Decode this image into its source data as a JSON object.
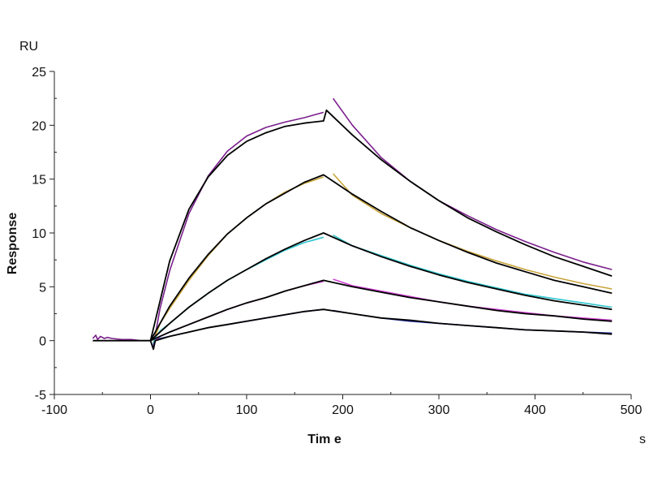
{
  "chart_data": {
    "type": "line",
    "title": "",
    "xlabel": "Tim e",
    "xunit": "s",
    "ylabel": "Response",
    "yunit": "RU",
    "xlim": [
      -100,
      500
    ],
    "ylim": [
      -5,
      25
    ],
    "xticks": [
      -100,
      0,
      100,
      200,
      300,
      400,
      500
    ],
    "yticks": [
      -5,
      0,
      5,
      10,
      15,
      20,
      25
    ],
    "grid": false,
    "legend": "none",
    "series": [
      {
        "name": "data-1",
        "color": "#7a1e8c",
        "kind": "data",
        "segments": [
          [
            [
              -60,
              0.2
            ],
            [
              -57,
              0.5
            ],
            [
              -55,
              0.1
            ],
            [
              -52,
              0.4
            ],
            [
              -48,
              0.2
            ],
            [
              -45,
              0.3
            ],
            [
              -40,
              0.2
            ],
            [
              -30,
              0.1
            ],
            [
              -20,
              0.1
            ],
            [
              -10,
              0.0
            ],
            [
              0,
              0.0
            ]
          ],
          [
            [
              3,
              -0.6
            ],
            [
              5,
              0.5
            ],
            [
              10,
              3.0
            ],
            [
              20,
              6.5
            ],
            [
              40,
              11.8
            ],
            [
              60,
              15.3
            ],
            [
              80,
              17.6
            ],
            [
              100,
              19.0
            ],
            [
              120,
              19.8
            ],
            [
              140,
              20.3
            ],
            [
              160,
              20.7
            ],
            [
              180,
              21.2
            ]
          ],
          [
            [
              190,
              22.5
            ],
            [
              210,
              20.0
            ],
            [
              240,
              17.0
            ],
            [
              270,
              14.8
            ],
            [
              300,
              13.0
            ],
            [
              330,
              11.6
            ],
            [
              360,
              10.3
            ],
            [
              390,
              9.2
            ],
            [
              420,
              8.2
            ],
            [
              450,
              7.3
            ],
            [
              480,
              6.6
            ]
          ]
        ]
      },
      {
        "name": "data-2",
        "color": "#c9a43a",
        "kind": "data",
        "segments": [
          [
            [
              3,
              -0.2
            ],
            [
              5,
              0.4
            ],
            [
              10,
              1.6
            ],
            [
              20,
              3.0
            ],
            [
              40,
              5.6
            ],
            [
              60,
              7.9
            ],
            [
              80,
              9.9
            ],
            [
              100,
              11.4
            ],
            [
              120,
              12.7
            ],
            [
              140,
              13.8
            ],
            [
              160,
              14.6
            ],
            [
              180,
              15.2
            ]
          ],
          [
            [
              190,
              15.5
            ],
            [
              210,
              13.5
            ],
            [
              240,
              11.8
            ],
            [
              270,
              10.5
            ],
            [
              300,
              9.3
            ],
            [
              330,
              8.3
            ],
            [
              360,
              7.4
            ],
            [
              390,
              6.6
            ],
            [
              420,
              5.9
            ],
            [
              450,
              5.3
            ],
            [
              480,
              4.8
            ]
          ]
        ]
      },
      {
        "name": "data-3",
        "color": "#2ec6cf",
        "kind": "data",
        "segments": [
          [
            [
              3,
              -0.3
            ],
            [
              5,
              0.3
            ],
            [
              10,
              0.9
            ],
            [
              20,
              1.6
            ],
            [
              40,
              3.1
            ],
            [
              60,
              4.4
            ],
            [
              80,
              5.6
            ],
            [
              100,
              6.6
            ],
            [
              120,
              7.5
            ],
            [
              140,
              8.4
            ],
            [
              160,
              9.1
            ],
            [
              180,
              9.6
            ]
          ],
          [
            [
              190,
              9.8
            ],
            [
              210,
              8.8
            ],
            [
              240,
              7.9
            ],
            [
              270,
              7.0
            ],
            [
              300,
              6.2
            ],
            [
              330,
              5.5
            ],
            [
              360,
              4.9
            ],
            [
              390,
              4.3
            ],
            [
              420,
              3.9
            ],
            [
              450,
              3.5
            ],
            [
              480,
              3.1
            ]
          ]
        ]
      },
      {
        "name": "data-4",
        "color": "#cf3fd2",
        "kind": "data",
        "segments": [
          [
            [
              3,
              -0.6
            ],
            [
              5,
              0.0
            ],
            [
              10,
              0.4
            ],
            [
              20,
              0.8
            ],
            [
              40,
              1.5
            ],
            [
              60,
              2.2
            ],
            [
              80,
              2.9
            ],
            [
              100,
              3.5
            ],
            [
              120,
              4.0
            ],
            [
              140,
              4.6
            ],
            [
              160,
              5.1
            ],
            [
              180,
              5.5
            ]
          ],
          [
            [
              190,
              5.7
            ],
            [
              210,
              5.1
            ],
            [
              240,
              4.6
            ],
            [
              270,
              4.1
            ],
            [
              300,
              3.6
            ],
            [
              330,
              3.2
            ],
            [
              360,
              2.9
            ],
            [
              390,
              2.6
            ],
            [
              420,
              2.3
            ],
            [
              450,
              2.1
            ],
            [
              480,
              1.9
            ]
          ]
        ]
      },
      {
        "name": "data-5",
        "color": "#1f2f9e",
        "kind": "data",
        "segments": [
          [
            [
              3,
              -0.4
            ],
            [
              5,
              0.0
            ],
            [
              10,
              0.2
            ],
            [
              20,
              0.4
            ],
            [
              40,
              0.8
            ],
            [
              60,
              1.2
            ],
            [
              80,
              1.5
            ],
            [
              100,
              1.8
            ],
            [
              120,
              2.1
            ],
            [
              140,
              2.4
            ],
            [
              160,
              2.7
            ],
            [
              180,
              2.9
            ]
          ],
          [
            [
              190,
              2.8
            ],
            [
              210,
              2.5
            ],
            [
              240,
              2.1
            ],
            [
              270,
              1.8
            ],
            [
              300,
              1.6
            ],
            [
              330,
              1.4
            ],
            [
              360,
              1.2
            ],
            [
              390,
              1.0
            ],
            [
              420,
              0.9
            ],
            [
              450,
              0.8
            ],
            [
              480,
              0.7
            ]
          ]
        ]
      },
      {
        "name": "fit-1",
        "color": "#000000",
        "kind": "fit",
        "segments": [
          [
            [
              -60,
              0
            ],
            [
              0,
              0
            ],
            [
              20,
              7.4
            ],
            [
              40,
              12.2
            ],
            [
              60,
              15.2
            ],
            [
              80,
              17.2
            ],
            [
              100,
              18.5
            ],
            [
              120,
              19.3
            ],
            [
              140,
              19.9
            ],
            [
              160,
              20.2
            ],
            [
              180,
              20.4
            ],
            [
              183,
              21.4
            ],
            [
              210,
              19.1
            ],
            [
              240,
              16.8
            ],
            [
              270,
              14.8
            ],
            [
              300,
              13.0
            ],
            [
              330,
              11.4
            ],
            [
              360,
              10.1
            ],
            [
              390,
              8.9
            ],
            [
              420,
              7.8
            ],
            [
              450,
              6.9
            ],
            [
              480,
              6.0
            ]
          ]
        ]
      },
      {
        "name": "fit-2",
        "color": "#000000",
        "kind": "fit",
        "segments": [
          [
            [
              0,
              0
            ],
            [
              20,
              3.2
            ],
            [
              40,
              5.8
            ],
            [
              60,
              8.0
            ],
            [
              80,
              9.9
            ],
            [
              100,
              11.4
            ],
            [
              120,
              12.7
            ],
            [
              140,
              13.7
            ],
            [
              160,
              14.7
            ],
            [
              180,
              15.4
            ],
            [
              210,
              13.6
            ],
            [
              240,
              12.0
            ],
            [
              270,
              10.5
            ],
            [
              300,
              9.3
            ],
            [
              330,
              8.2
            ],
            [
              360,
              7.2
            ],
            [
              390,
              6.4
            ],
            [
              420,
              5.6
            ],
            [
              450,
              5.0
            ],
            [
              480,
              4.4
            ]
          ]
        ]
      },
      {
        "name": "fit-3",
        "color": "#000000",
        "kind": "fit",
        "segments": [
          [
            [
              0,
              0
            ],
            [
              20,
              1.6
            ],
            [
              40,
              3.1
            ],
            [
              60,
              4.4
            ],
            [
              80,
              5.6
            ],
            [
              100,
              6.6
            ],
            [
              120,
              7.6
            ],
            [
              140,
              8.5
            ],
            [
              160,
              9.3
            ],
            [
              180,
              10.0
            ],
            [
              210,
              8.8
            ],
            [
              240,
              7.8
            ],
            [
              270,
              6.9
            ],
            [
              300,
              6.1
            ],
            [
              330,
              5.4
            ],
            [
              360,
              4.8
            ],
            [
              390,
              4.2
            ],
            [
              420,
              3.7
            ],
            [
              450,
              3.3
            ],
            [
              480,
              2.9
            ]
          ]
        ]
      },
      {
        "name": "fit-4",
        "color": "#000000",
        "kind": "fit",
        "segments": [
          [
            [
              0,
              0
            ],
            [
              20,
              0.8
            ],
            [
              40,
              1.5
            ],
            [
              60,
              2.2
            ],
            [
              80,
              2.9
            ],
            [
              100,
              3.5
            ],
            [
              120,
              4.0
            ],
            [
              140,
              4.6
            ],
            [
              160,
              5.1
            ],
            [
              180,
              5.6
            ],
            [
              210,
              5.0
            ],
            [
              240,
              4.5
            ],
            [
              270,
              4.0
            ],
            [
              300,
              3.6
            ],
            [
              330,
              3.2
            ],
            [
              360,
              2.8
            ],
            [
              390,
              2.5
            ],
            [
              420,
              2.3
            ],
            [
              450,
              2.0
            ],
            [
              480,
              1.8
            ]
          ]
        ]
      },
      {
        "name": "fit-5",
        "color": "#000000",
        "kind": "fit",
        "segments": [
          [
            [
              0,
              0
            ],
            [
              3,
              -0.8
            ],
            [
              5,
              0.0
            ],
            [
              20,
              0.4
            ],
            [
              40,
              0.8
            ],
            [
              60,
              1.2
            ],
            [
              80,
              1.5
            ],
            [
              100,
              1.8
            ],
            [
              120,
              2.1
            ],
            [
              140,
              2.4
            ],
            [
              160,
              2.7
            ],
            [
              180,
              2.9
            ],
            [
              210,
              2.5
            ],
            [
              240,
              2.1
            ],
            [
              270,
              1.9
            ],
            [
              300,
              1.6
            ],
            [
              330,
              1.4
            ],
            [
              360,
              1.2
            ],
            [
              390,
              1.0
            ],
            [
              420,
              0.9
            ],
            [
              450,
              0.8
            ],
            [
              480,
              0.6
            ]
          ]
        ]
      }
    ]
  }
}
